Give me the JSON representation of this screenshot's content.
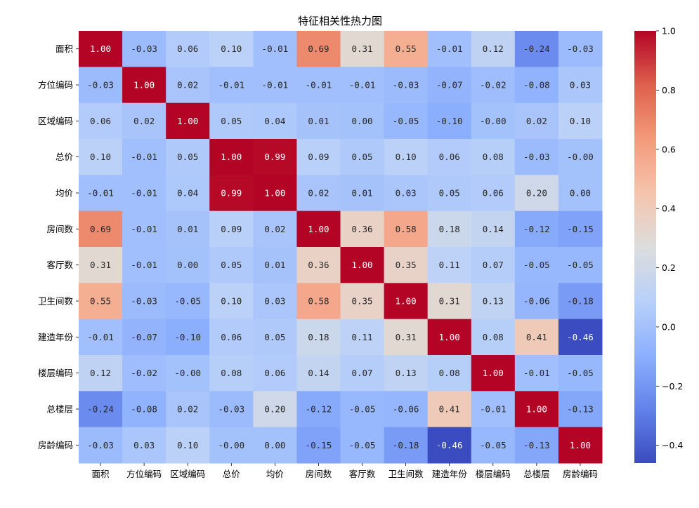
{
  "chart_data": {
    "type": "heatmap",
    "title": "特征相关性热力图",
    "labels": [
      "面积",
      "方位编码",
      "区域编码",
      "总价",
      "均价",
      "房间数",
      "客厅数",
      "卫生间数",
      "建造年份",
      "楼层编码",
      "总楼层",
      "房龄编码"
    ],
    "values": [
      [
        1.0,
        -0.03,
        0.06,
        0.1,
        -0.01,
        0.69,
        0.31,
        0.55,
        -0.01,
        0.12,
        -0.24,
        -0.03
      ],
      [
        -0.03,
        1.0,
        0.02,
        -0.01,
        -0.01,
        -0.01,
        -0.01,
        -0.03,
        -0.07,
        -0.02,
        -0.08,
        0.03
      ],
      [
        0.06,
        0.02,
        1.0,
        0.05,
        0.04,
        0.01,
        0.0,
        -0.05,
        -0.1,
        -0.0,
        0.02,
        0.1
      ],
      [
        0.1,
        -0.01,
        0.05,
        1.0,
        0.99,
        0.09,
        0.05,
        0.1,
        0.06,
        0.08,
        -0.03,
        -0.0
      ],
      [
        -0.01,
        -0.01,
        0.04,
        0.99,
        1.0,
        0.02,
        0.01,
        0.03,
        0.05,
        0.06,
        0.2,
        0.0
      ],
      [
        0.69,
        -0.01,
        0.01,
        0.09,
        0.02,
        1.0,
        0.36,
        0.58,
        0.18,
        0.14,
        -0.12,
        -0.15
      ],
      [
        0.31,
        -0.01,
        0.0,
        0.05,
        0.01,
        0.36,
        1.0,
        0.35,
        0.11,
        0.07,
        -0.05,
        -0.05
      ],
      [
        0.55,
        -0.03,
        -0.05,
        0.1,
        0.03,
        0.58,
        0.35,
        1.0,
        0.31,
        0.13,
        -0.06,
        -0.18
      ],
      [
        -0.01,
        -0.07,
        -0.1,
        0.06,
        0.05,
        0.18,
        0.11,
        0.31,
        1.0,
        0.08,
        0.41,
        -0.46
      ],
      [
        0.12,
        -0.02,
        -0.0,
        0.08,
        0.06,
        0.14,
        0.07,
        0.13,
        0.08,
        1.0,
        -0.01,
        -0.05
      ],
      [
        -0.24,
        -0.08,
        0.02,
        -0.03,
        0.2,
        -0.12,
        -0.05,
        -0.06,
        0.41,
        -0.01,
        1.0,
        -0.13
      ],
      [
        -0.03,
        0.03,
        0.1,
        -0.0,
        0.0,
        -0.15,
        -0.05,
        -0.18,
        -0.46,
        -0.05,
        -0.13,
        1.0
      ]
    ],
    "colormap": "coolwarm",
    "colorbar": {
      "vmin": -0.46,
      "vmax": 1.0,
      "ticks": [
        1.0,
        0.8,
        0.6,
        0.4,
        0.2,
        0.0,
        -0.2,
        -0.4
      ],
      "tick_labels": [
        "1.0",
        "0.8",
        "0.6",
        "0.4",
        "0.2",
        "0.0",
        "−0.2",
        "−0.4"
      ]
    },
    "annotations": true,
    "annotation_format": "0.00"
  }
}
